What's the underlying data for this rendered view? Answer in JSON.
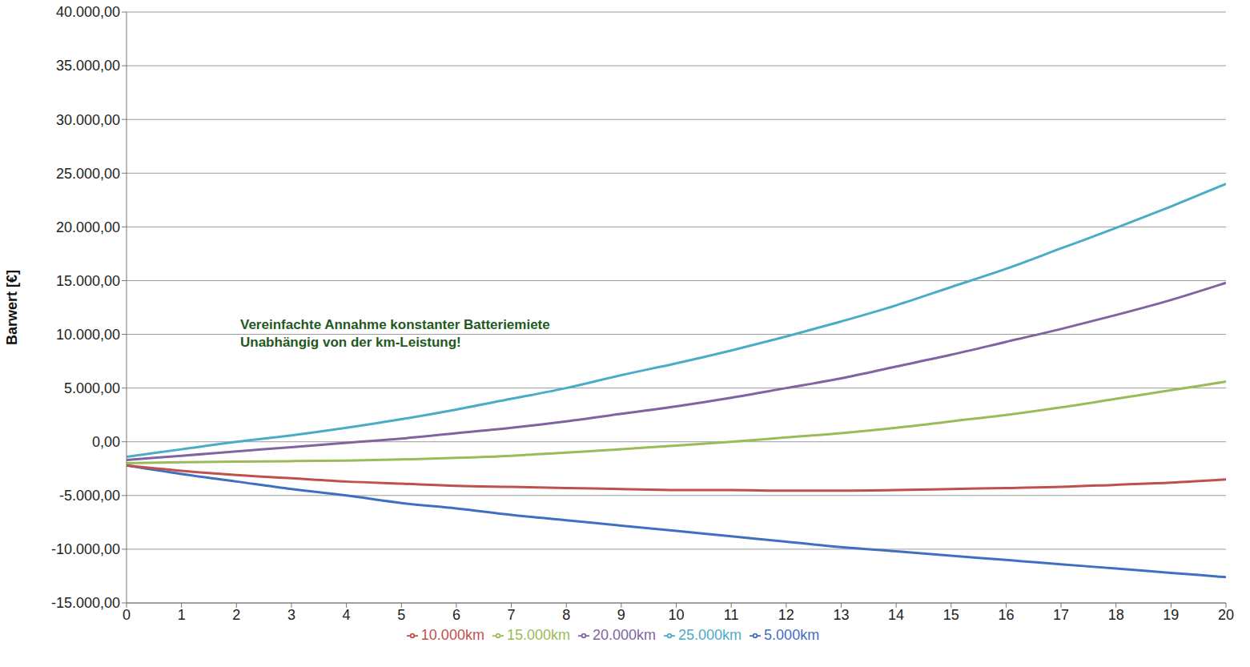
{
  "chart_data": {
    "type": "line",
    "y_label": "Barwert [€]",
    "annotations": [
      "Vereinfachte Annahme konstanter Batteriemiete",
      "Unabhängig von der km-Leistung!"
    ],
    "x": [
      0,
      1,
      2,
      3,
      4,
      5,
      6,
      7,
      8,
      9,
      10,
      11,
      12,
      13,
      14,
      15,
      16,
      17,
      18,
      19,
      20
    ],
    "xlim": [
      0,
      20
    ],
    "xticks": [
      0,
      1,
      2,
      3,
      4,
      5,
      6,
      7,
      8,
      9,
      10,
      11,
      12,
      13,
      14,
      15,
      16,
      17,
      18,
      19,
      20
    ],
    "ylim": [
      -15000,
      40000
    ],
    "yticks": [
      {
        "value": -15000,
        "label": "-15.000,00"
      },
      {
        "value": -10000,
        "label": "-10.000,00"
      },
      {
        "value": -5000,
        "label": "-5.000,00"
      },
      {
        "value": 0,
        "label": "0,00"
      },
      {
        "value": 5000,
        "label": "5.000,00"
      },
      {
        "value": 10000,
        "label": "10.000,00"
      },
      {
        "value": 15000,
        "label": "15.000,00"
      },
      {
        "value": 20000,
        "label": "20.000,00"
      },
      {
        "value": 25000,
        "label": "25.000,00"
      },
      {
        "value": 30000,
        "label": "30.000,00"
      },
      {
        "value": 35000,
        "label": "35.000,00"
      },
      {
        "value": 40000,
        "label": "40.000,00"
      }
    ],
    "grid": true,
    "legend": "bottom",
    "series": [
      {
        "name": "5.000km",
        "color": "#3f6fc0",
        "values": [
          -2200,
          -3000,
          -3700,
          -4400,
          -5000,
          -5700,
          -6200,
          -6800,
          -7300,
          -7800,
          -8300,
          -8800,
          -9300,
          -9800,
          -10200,
          -10600,
          -11000,
          -11400,
          -11800,
          -12200,
          -12600
        ]
      },
      {
        "name": "10.000km",
        "color": "#c0504d",
        "values": [
          -2200,
          -2700,
          -3100,
          -3400,
          -3700,
          -3900,
          -4100,
          -4200,
          -4300,
          -4400,
          -4500,
          -4500,
          -4550,
          -4550,
          -4500,
          -4400,
          -4300,
          -4200,
          -4000,
          -3800,
          -3500
        ]
      },
      {
        "name": "15.000km",
        "color": "#9bbb59",
        "values": [
          -2000,
          -1900,
          -1850,
          -1800,
          -1750,
          -1650,
          -1500,
          -1300,
          -1000,
          -700,
          -350,
          0,
          400,
          800,
          1300,
          1900,
          2500,
          3200,
          4000,
          4800,
          5600
        ]
      },
      {
        "name": "20.000km",
        "color": "#8064a2",
        "values": [
          -1700,
          -1300,
          -900,
          -500,
          -100,
          300,
          800,
          1300,
          1900,
          2600,
          3300,
          4100,
          5000,
          5900,
          7000,
          8100,
          9300,
          10500,
          11800,
          13200,
          14800
        ]
      },
      {
        "name": "25.000km",
        "color": "#4bacc6",
        "values": [
          -1400,
          -700,
          0,
          600,
          1300,
          2100,
          3000,
          4000,
          5000,
          6200,
          7300,
          8500,
          9800,
          11200,
          12700,
          14400,
          16100,
          18000,
          19900,
          21900,
          24000
        ]
      }
    ]
  }
}
